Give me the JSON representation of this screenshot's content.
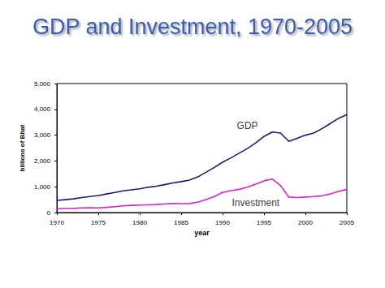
{
  "chart_data": {
    "type": "line",
    "title": "GDP and Investment, 1970-2005",
    "x_label": "year",
    "y_label": "billions of Bhat",
    "x": [
      1970,
      1971,
      1972,
      1973,
      1974,
      1975,
      1976,
      1977,
      1978,
      1979,
      1980,
      1981,
      1982,
      1983,
      1984,
      1985,
      1986,
      1987,
      1988,
      1989,
      1990,
      1991,
      1992,
      1993,
      1994,
      1995,
      1996,
      1997,
      1998,
      1999,
      2000,
      2001,
      2002,
      2003,
      2004,
      2005
    ],
    "series": [
      {
        "name": "GDP",
        "color": "#1c1c6e",
        "values": [
          470,
          500,
          530,
          580,
          620,
          660,
          720,
          780,
          840,
          880,
          920,
          980,
          1020,
          1080,
          1150,
          1200,
          1260,
          1380,
          1560,
          1750,
          1950,
          2120,
          2300,
          2480,
          2700,
          2950,
          3120,
          3080,
          2760,
          2880,
          3000,
          3080,
          3250,
          3450,
          3650,
          3800
        ]
      },
      {
        "name": "Investment",
        "color": "#e020c8",
        "values": [
          150,
          155,
          160,
          180,
          185,
          180,
          200,
          230,
          260,
          280,
          290,
          300,
          310,
          330,
          350,
          345,
          350,
          400,
          500,
          620,
          780,
          850,
          900,
          980,
          1100,
          1230,
          1300,
          1050,
          600,
          580,
          600,
          620,
          650,
          720,
          820,
          900
        ]
      }
    ],
    "annotations": [
      {
        "text": "GDP",
        "x": 1993,
        "y": 3350
      },
      {
        "text": "Investment",
        "x": 1994,
        "y": 380
      }
    ],
    "xlim": [
      1970,
      2005
    ],
    "xticks": [
      1970,
      1975,
      1980,
      1985,
      1990,
      1995,
      2000,
      2005
    ],
    "ylim": [
      0,
      5000
    ],
    "yticks": [
      0,
      {
        "value": 1000,
        "label": "1,000"
      },
      {
        "value": 2000,
        "label": "2,000"
      },
      {
        "value": 3000,
        "label": "3,000"
      },
      {
        "value": 4000,
        "label": "4,000"
      },
      {
        "value": 5000,
        "label": "5,000"
      }
    ],
    "grid": false,
    "legend": false
  }
}
